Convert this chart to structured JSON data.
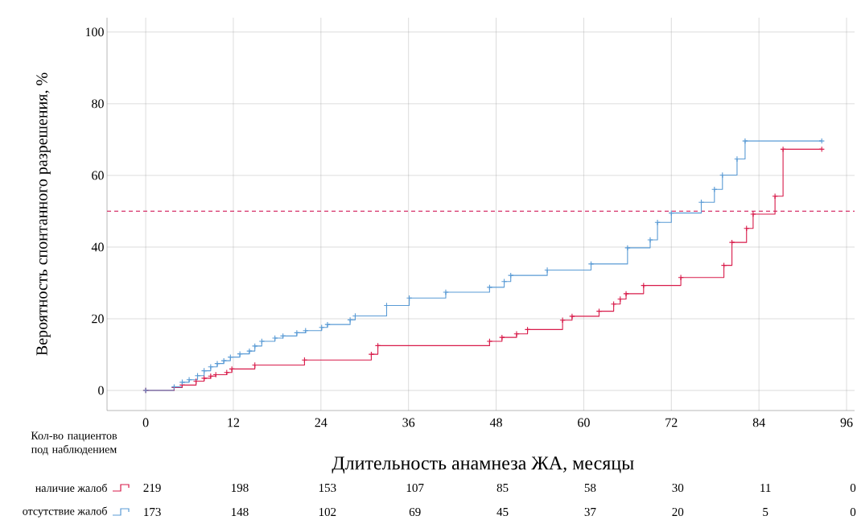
{
  "chart_data": {
    "type": "step",
    "xlabel": "Длительность анамнеза ЖА, месяцы",
    "ylabel": "Вероятность спонтанного разрешения, %",
    "xlim": [
      -5.3,
      97.1
    ],
    "ylim": [
      -5.6,
      104
    ],
    "xticks": [
      0,
      12,
      24,
      36,
      48,
      60,
      72,
      84,
      96
    ],
    "yticks": [
      0,
      20,
      40,
      60,
      80,
      100
    ],
    "grid": true,
    "legend": "bottom left",
    "legend_title": "Кол-во пациентов под наблюдением",
    "marker": "cross",
    "line_style": "solid",
    "ref_lines": [
      {
        "axis": "y",
        "value": 50,
        "color": "#d6336a",
        "line_style": "dashed"
      }
    ],
    "series": [
      {
        "name": "наличие жалоб",
        "color": "#d81b4a",
        "x": [
          0,
          3.9,
          5.0,
          6.9,
          8.0,
          8.9,
          9.6,
          11.1,
          11.8,
          14.95,
          21.75,
          30.9,
          31.8,
          47.1,
          48.8,
          50.8,
          52.3,
          57.1,
          58.4,
          62.1,
          64.1,
          65.0,
          65.8,
          68.2,
          73.3,
          79.2,
          80.3,
          82.3,
          83.2,
          86.2,
          87.3,
          92.6
        ],
        "values": [
          0,
          0.8,
          1.5,
          2.6,
          3.4,
          4.0,
          4.4,
          5.0,
          6.0,
          7.1,
          8.5,
          10.1,
          12.5,
          13.7,
          14.8,
          15.8,
          17.0,
          19.6,
          20.7,
          22.1,
          24.1,
          25.5,
          27.0,
          29.3,
          31.5,
          34.9,
          41.3,
          45.2,
          49.2,
          54.2,
          67.3,
          67.3
        ]
      },
      {
        "name": "отсутствие жалоб",
        "color": "#5a9bd5",
        "x": [
          0,
          3.9,
          5.0,
          5.95,
          7.1,
          8.0,
          8.9,
          9.8,
          10.7,
          11.6,
          12.9,
          14.2,
          14.95,
          15.9,
          17.7,
          18.8,
          20.7,
          21.9,
          24.1,
          24.9,
          28.0,
          28.7,
          33.0,
          36.1,
          41.1,
          47.1,
          49.1,
          50.0,
          55.0,
          61.0,
          66.0,
          69.1,
          70.1,
          72.0,
          76.1,
          77.9,
          79.0,
          81.0,
          82.1,
          92.6
        ],
        "values": [
          0,
          1.0,
          2.3,
          3.0,
          4.1,
          5.5,
          6.6,
          7.5,
          8.3,
          9.3,
          10.2,
          11.0,
          12.4,
          13.7,
          14.6,
          15.2,
          16.1,
          16.7,
          17.6,
          18.4,
          19.7,
          20.8,
          23.7,
          25.8,
          27.4,
          28.8,
          30.4,
          32.1,
          33.6,
          35.3,
          39.8,
          42.0,
          46.9,
          49.5,
          52.5,
          56.1,
          60.1,
          64.6,
          69.6,
          69.6
        ]
      }
    ],
    "annotations": [
      "219",
      "198",
      "153",
      "107",
      "85",
      "58",
      "30",
      "11",
      "0",
      "173",
      "148",
      "102",
      "69",
      "45",
      "37",
      "20",
      "5",
      "0"
    ]
  }
}
